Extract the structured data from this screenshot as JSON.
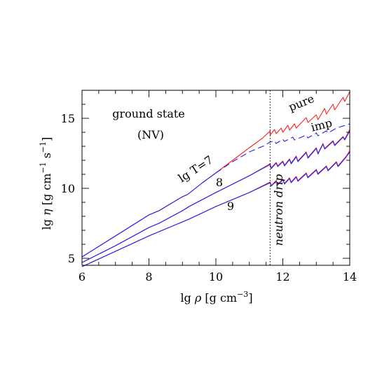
{
  "chart_data": {
    "type": "line",
    "xlabel": "lg ρ [g cm⁻³]",
    "ylabel": "lg η [g cm⁻¹ s⁻¹]",
    "xlim": [
      6,
      14
    ],
    "ylim": [
      4.5,
      17
    ],
    "xticks": [
      6,
      8,
      10,
      12,
      14
    ],
    "yticks": [
      5,
      10,
      15
    ],
    "grid": false,
    "colors": {
      "pure": "#ff2020",
      "imp": "#2020ff"
    },
    "annotations": {
      "state": "ground state",
      "model": "(NV)",
      "t7": "lg T=7",
      "t8": "8",
      "t9": "9",
      "pure": "pure",
      "imp": "imp",
      "drip": "neutron drip"
    },
    "drip_x": 11.62,
    "series": [
      {
        "key": "t7_pure",
        "color": "pure",
        "dash": false,
        "x": [
          6,
          7,
          8,
          8.3,
          9,
          9.15,
          9.6,
          10,
          10.5,
          11,
          11.4,
          11.62,
          11.62,
          11.75,
          11.8,
          11.95,
          12.0,
          12.15,
          12.2,
          12.35,
          12.4,
          12.7,
          12.75,
          13.0,
          13.05,
          13.25,
          13.3,
          13.5,
          13.55,
          13.8,
          13.85,
          14.0
        ],
        "y": [
          5.1,
          6.6,
          8.1,
          8.4,
          9.4,
          9.55,
          10.4,
          11.1,
          12.0,
          12.9,
          13.6,
          14.1,
          13.8,
          14.2,
          13.9,
          14.3,
          14.0,
          14.5,
          14.15,
          14.6,
          14.3,
          15.05,
          14.7,
          15.25,
          14.9,
          15.7,
          15.3,
          16.0,
          15.6,
          16.5,
          16.2,
          16.9
        ]
      },
      {
        "key": "t7_imp",
        "color": "imp",
        "dash": false,
        "x": [
          6,
          7,
          8,
          8.3,
          9,
          9.15,
          9.6,
          10
        ],
        "y": [
          5.1,
          6.6,
          8.1,
          8.4,
          9.4,
          9.55,
          10.4,
          11.1
        ]
      },
      {
        "key": "t7_imp_dash",
        "color": "imp",
        "dash": true,
        "x": [
          10,
          10.5,
          11,
          11.4,
          11.62,
          11.75,
          11.8,
          12.0,
          12.05,
          12.3,
          12.35,
          12.7,
          12.75,
          13.0,
          13.05,
          13.3,
          13.35,
          13.6,
          14.0
        ],
        "y": [
          11.1,
          11.9,
          12.6,
          13.0,
          13.3,
          13.4,
          13.2,
          13.5,
          13.35,
          13.65,
          13.45,
          13.8,
          13.6,
          13.95,
          13.75,
          14.1,
          13.95,
          14.3,
          14.6
        ]
      },
      {
        "key": "t8_pure",
        "color": "pure",
        "dash": false,
        "x": [
          6,
          7,
          8,
          8.3,
          9,
          9.2,
          10,
          11,
          11.62,
          11.65,
          11.8,
          11.85,
          12.0,
          12.05,
          12.2,
          12.25,
          12.4,
          12.45,
          12.7,
          12.75,
          13.0,
          13.05,
          13.2,
          13.25,
          13.5,
          13.55,
          13.8,
          13.85,
          14.0
        ],
        "y": [
          4.7,
          5.9,
          7.2,
          7.5,
          8.4,
          8.7,
          9.7,
          10.9,
          11.75,
          11.45,
          11.85,
          11.6,
          11.95,
          11.65,
          12.1,
          11.8,
          12.3,
          11.95,
          12.6,
          12.2,
          12.9,
          12.5,
          13.2,
          12.85,
          13.4,
          13.1,
          13.7,
          13.5,
          14.2
        ]
      },
      {
        "key": "t8_imp",
        "color": "imp",
        "dash": false,
        "x": [
          6,
          7,
          8,
          8.3,
          9,
          9.2,
          10,
          11,
          11.62,
          11.65,
          11.8,
          11.85,
          12.0,
          12.05,
          12.2,
          12.25,
          12.4,
          12.45,
          12.7,
          12.75,
          13.0,
          13.05,
          13.2,
          13.25,
          13.5,
          13.55,
          13.8,
          13.85,
          14.0
        ],
        "y": [
          4.7,
          5.9,
          7.2,
          7.5,
          8.4,
          8.7,
          9.7,
          10.9,
          11.7,
          11.4,
          11.8,
          11.55,
          11.9,
          11.6,
          12.05,
          11.75,
          12.25,
          11.9,
          12.55,
          12.15,
          12.85,
          12.45,
          13.15,
          12.8,
          13.35,
          13.05,
          13.65,
          13.45,
          14.1
        ]
      },
      {
        "key": "t9_pure",
        "color": "pure",
        "dash": false,
        "x": [
          6,
          7,
          8,
          8.3,
          9,
          9.2,
          10,
          11,
          11.62,
          11.65,
          11.8,
          11.85,
          12.0,
          12.05,
          12.2,
          12.25,
          12.4,
          12.45,
          12.7,
          12.75,
          13.0,
          13.05,
          13.3,
          13.35,
          13.6,
          13.65,
          13.9,
          14.0
        ],
        "y": [
          4.4,
          5.5,
          6.6,
          6.9,
          7.6,
          7.8,
          8.7,
          9.7,
          10.45,
          10.2,
          10.55,
          10.3,
          10.65,
          10.35,
          10.75,
          10.45,
          10.85,
          10.55,
          11.1,
          10.8,
          11.35,
          11.05,
          11.6,
          11.3,
          11.9,
          11.6,
          12.3,
          12.7
        ]
      },
      {
        "key": "t9_imp",
        "color": "imp",
        "dash": false,
        "x": [
          6,
          7,
          8,
          8.3,
          9,
          9.2,
          10,
          11,
          11.62,
          11.65,
          11.8,
          11.85,
          12.0,
          12.05,
          12.2,
          12.25,
          12.4,
          12.45,
          12.7,
          12.75,
          13.0,
          13.05,
          13.3,
          13.35,
          13.6,
          13.65,
          13.9,
          14.0
        ],
        "y": [
          4.4,
          5.5,
          6.6,
          6.9,
          7.6,
          7.8,
          8.7,
          9.7,
          10.4,
          10.15,
          10.5,
          10.25,
          10.6,
          10.3,
          10.7,
          10.4,
          10.8,
          10.5,
          11.05,
          10.75,
          11.3,
          11.0,
          11.55,
          11.25,
          11.85,
          11.55,
          12.25,
          12.6
        ]
      }
    ]
  }
}
